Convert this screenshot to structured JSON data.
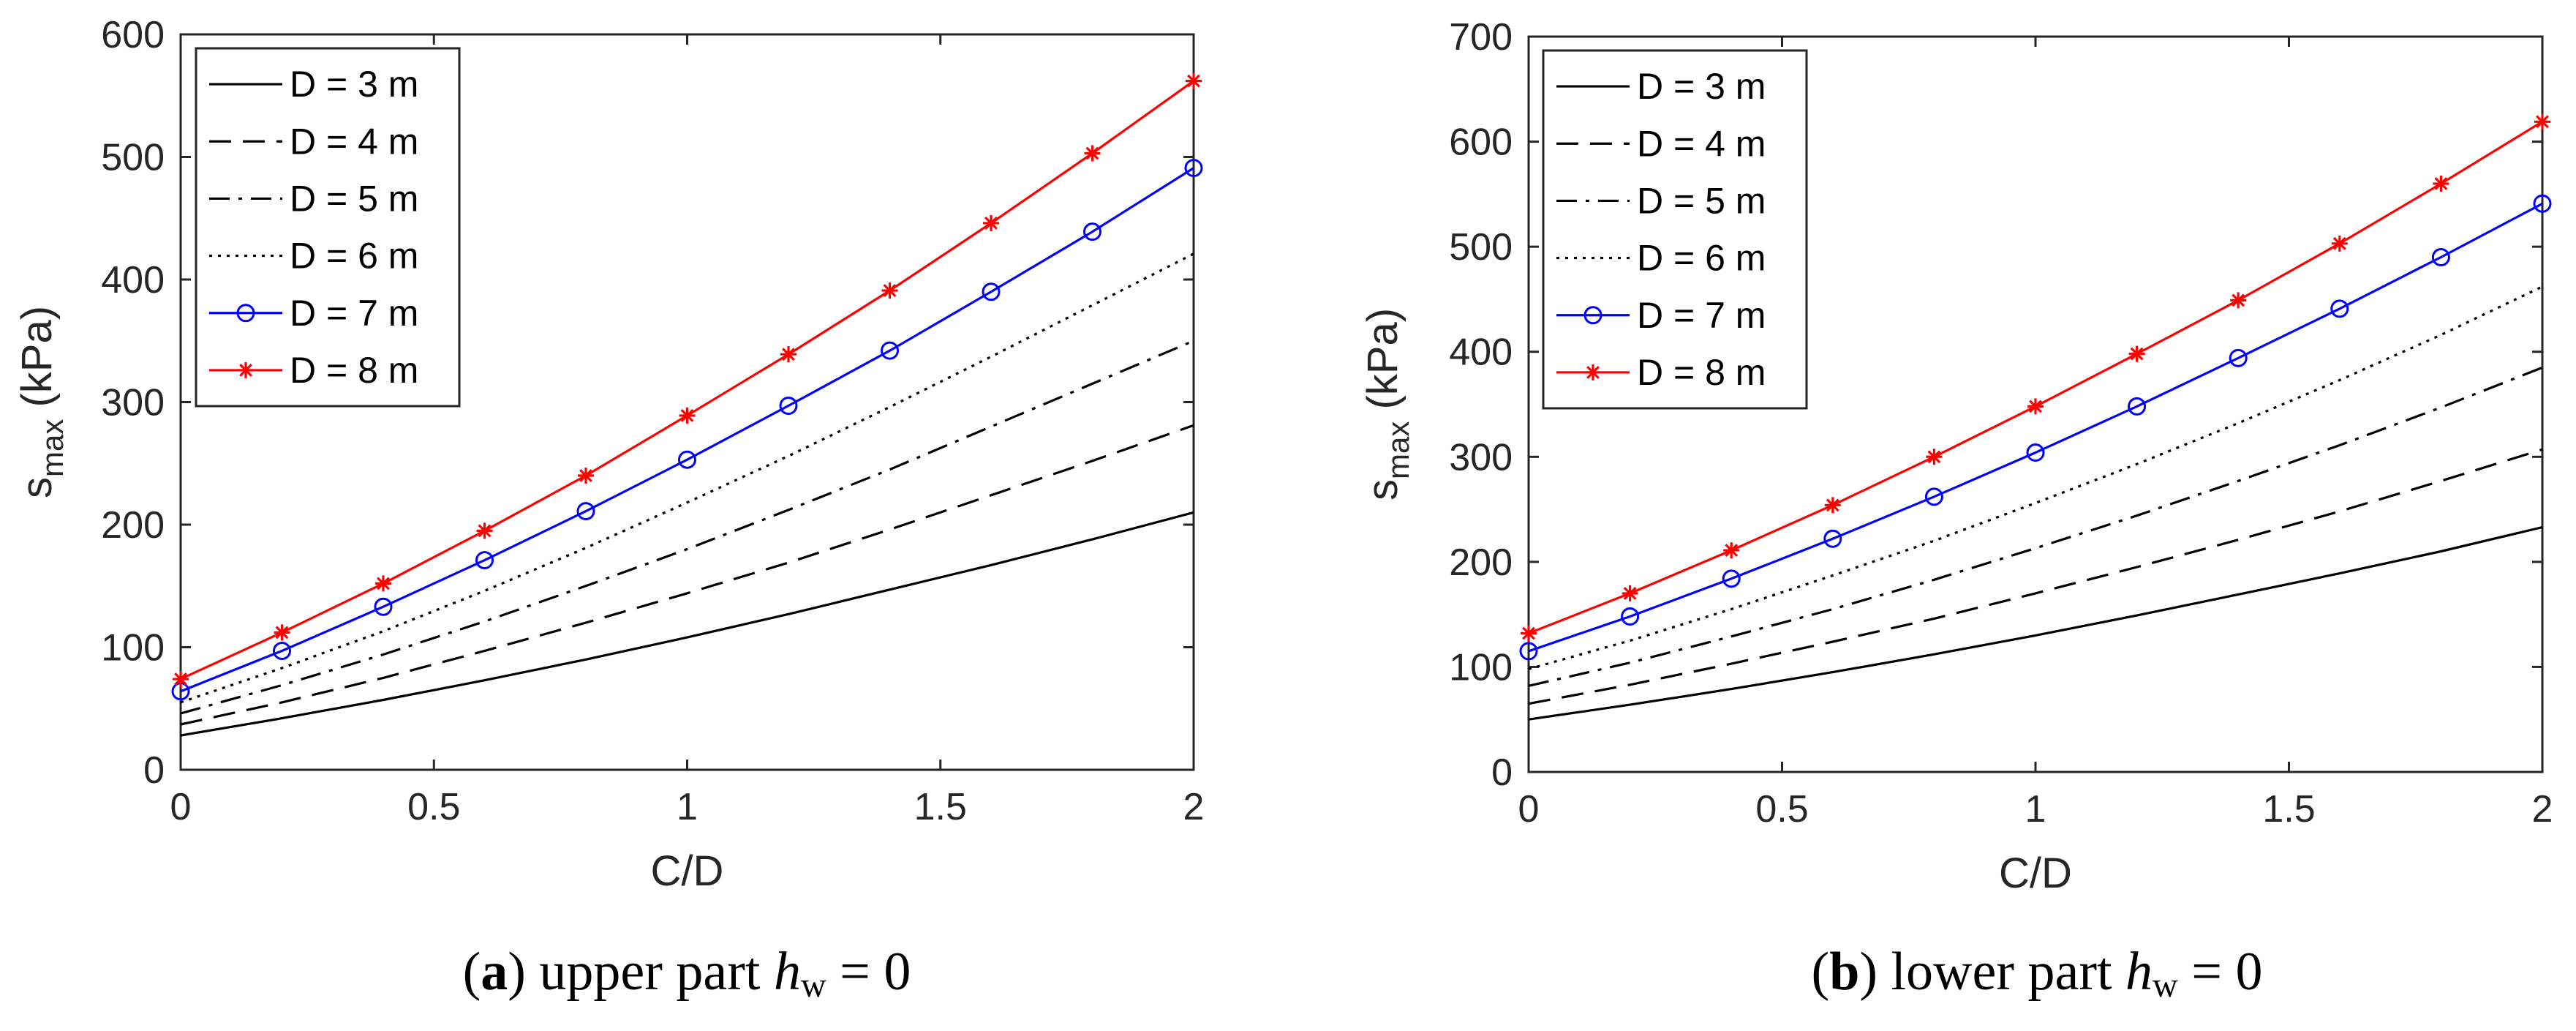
{
  "chart_data": [
    {
      "type": "line",
      "panel": "a",
      "caption": {
        "letter": "a",
        "text": " upper part ",
        "var": "h",
        "sub": "w",
        "tail": " = 0"
      },
      "xlabel": "C/D",
      "ylabel": {
        "main": "s",
        "sub": "max",
        "unit": " (kPa)"
      },
      "xlim": [
        0,
        2
      ],
      "ylim": [
        0,
        600
      ],
      "xticks": [
        0,
        0.5,
        1,
        1.5,
        2
      ],
      "xtick_labels": [
        "0",
        "0.5",
        "1",
        "1.5",
        "2"
      ],
      "yticks": [
        0,
        100,
        200,
        300,
        400,
        500,
        600
      ],
      "ytick_labels": [
        "0",
        "100",
        "200",
        "300",
        "400",
        "500",
        "600"
      ],
      "legend_position": "top-left",
      "x": [
        0,
        0.2,
        0.4,
        0.6,
        0.8,
        1.0,
        1.2,
        1.4,
        1.6,
        1.8,
        2.0
      ],
      "series": [
        {
          "name": "D = 3 m",
          "style": "solid",
          "color": "#000000",
          "marker": "none",
          "values": [
            28,
            42,
            57,
            73,
            90,
            108,
            127,
            147,
            167,
            188,
            210
          ]
        },
        {
          "name": "D = 4 m",
          "style": "dashed",
          "color": "#000000",
          "marker": "none",
          "values": [
            37,
            55,
            75,
            97,
            120,
            144,
            169,
            196,
            224,
            252,
            281
          ]
        },
        {
          "name": "D = 5 m",
          "style": "dashdot",
          "color": "#000000",
          "marker": "none",
          "values": [
            46,
            69,
            94,
            121,
            150,
            180,
            212,
            245,
            280,
            315,
            350
          ]
        },
        {
          "name": "D = 6 m",
          "style": "dotted",
          "color": "#000000",
          "marker": "none",
          "values": [
            55,
            83,
            113,
            146,
            181,
            218,
            256,
            296,
            337,
            379,
            421
          ]
        },
        {
          "name": "D = 7 m",
          "style": "solid",
          "color": "#0000ff",
          "marker": "circle",
          "values": [
            64,
            97,
            133,
            171,
            211,
            253,
            297,
            342,
            390,
            439,
            491
          ]
        },
        {
          "name": "D = 8 m",
          "style": "solid",
          "color": "#ff0000",
          "marker": "star",
          "values": [
            74,
            112,
            152,
            195,
            240,
            289,
            339,
            391,
            446,
            503,
            562
          ]
        }
      ]
    },
    {
      "type": "line",
      "panel": "b",
      "caption": {
        "letter": "b",
        "text": " lower part ",
        "var": "h",
        "sub": "w",
        "tail": " = 0"
      },
      "xlabel": "C/D",
      "ylabel": {
        "main": "s",
        "sub": "max",
        "unit": " (kPa)"
      },
      "xlim": [
        0,
        2
      ],
      "ylim": [
        0,
        700
      ],
      "xticks": [
        0,
        0.5,
        1,
        1.5,
        2
      ],
      "xtick_labels": [
        "0",
        "0.5",
        "1",
        "1.5",
        "2"
      ],
      "yticks": [
        0,
        100,
        200,
        300,
        400,
        500,
        600,
        700
      ],
      "ytick_labels": [
        "0",
        "100",
        "200",
        "300",
        "400",
        "500",
        "600",
        "700"
      ],
      "legend_position": "top-left",
      "x": [
        0,
        0.2,
        0.4,
        0.6,
        0.8,
        1.0,
        1.2,
        1.4,
        1.6,
        1.8,
        2.0
      ],
      "series": [
        {
          "name": "D = 3 m",
          "style": "solid",
          "color": "#000000",
          "marker": "none",
          "values": [
            50,
            64,
            79,
            95,
            112,
            130,
            149,
            169,
            189,
            210,
            233
          ]
        },
        {
          "name": "D = 4 m",
          "style": "dashed",
          "color": "#000000",
          "marker": "none",
          "values": [
            65,
            83,
            103,
            124,
            146,
            170,
            195,
            221,
            248,
            277,
            307
          ]
        },
        {
          "name": "D = 5 m",
          "style": "dashdot",
          "color": "#000000",
          "marker": "none",
          "values": [
            82,
            104,
            129,
            155,
            183,
            213,
            244,
            277,
            311,
            347,
            385
          ]
        },
        {
          "name": "D = 6 m",
          "style": "dotted",
          "color": "#000000",
          "marker": "none",
          "values": [
            98,
            125,
            155,
            187,
            220,
            256,
            293,
            332,
            373,
            416,
            462
          ]
        },
        {
          "name": "D = 7 m",
          "style": "solid",
          "color": "#0000ff",
          "marker": "circle",
          "values": [
            115,
            148,
            184,
            222,
            262,
            304,
            348,
            394,
            441,
            490,
            541
          ]
        },
        {
          "name": "D = 8 m",
          "style": "solid",
          "color": "#ff0000",
          "marker": "star",
          "values": [
            132,
            170,
            211,
            254,
            300,
            348,
            398,
            449,
            503,
            560,
            619
          ]
        }
      ]
    }
  ]
}
